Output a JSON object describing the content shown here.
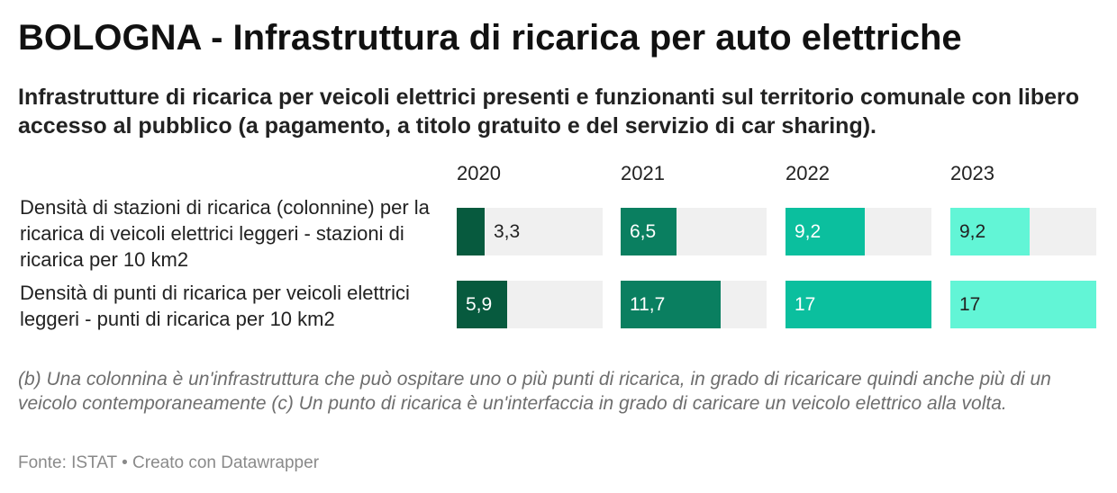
{
  "title": "BOLOGNA - Infrastruttura di ricarica per auto elettriche",
  "subtitle": "Infrastrutture di ricarica per veicoli elettrici presenti e funzionanti sul territorio comunale con libero accesso al pubblico (a pagamento, a titolo gratuito e del servizio di car sharing).",
  "notes": "(b) Una colonnina è un'infrastruttura che può ospitare uno o più punti di ricarica, in grado di ricaricare quindi anche più di un veicolo contemporaneamente (c) Un punto di ricarica è un'interfaccia in grado di caricare un veicolo elettrico alla volta.",
  "source": "Fonte: ISTAT • Creato con Datawrapper",
  "colors": {
    "2020": "#075a3e",
    "2021": "#0a7f60",
    "2022": "#0bbf9e",
    "2023": "#62f5d6",
    "track": "#f0f0f0"
  },
  "chart_data": {
    "type": "bar",
    "categories": [
      "2020",
      "2021",
      "2022",
      "2023"
    ],
    "series": [
      {
        "name": "Densità di stazioni di ricarica (colonnine) per la ricarica di veicoli elettrici leggeri - stazioni di ricarica per 10 km2",
        "values": [
          3.3,
          6.5,
          9.2,
          9.2
        ],
        "labels": [
          "3,3",
          "6,5",
          "9,2",
          "9,2"
        ]
      },
      {
        "name": "Densità di punti di ricarica per veicoli elettrici leggeri - punti di ricarica per 10 km2",
        "values": [
          5.9,
          11.7,
          17,
          17
        ],
        "labels": [
          "5,9",
          "11,7",
          "17",
          "17"
        ]
      }
    ],
    "xlim": [
      0,
      17
    ]
  }
}
